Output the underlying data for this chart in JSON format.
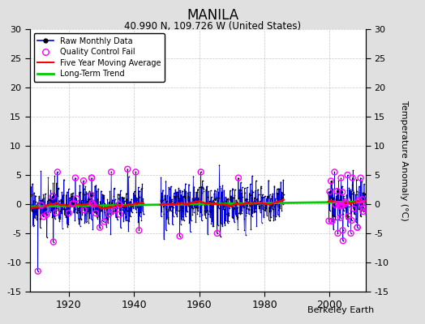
{
  "title": "MANILA",
  "subtitle": "40.990 N, 109.726 W (United States)",
  "ylabel_right": "Temperature Anomaly (°C)",
  "credit": "Berkeley Earth",
  "year_start": 1908,
  "year_end": 2011,
  "ylim": [
    -15,
    30
  ],
  "yticks": [
    -15,
    -10,
    -5,
    0,
    5,
    10,
    15,
    20,
    25,
    30
  ],
  "xticks": [
    1920,
    1940,
    1960,
    1980,
    2000
  ],
  "bg_color": "#e0e0e0",
  "plot_bg_color": "#ffffff",
  "grid_color": "#b0b0b0",
  "raw_line_color": "#0000dd",
  "raw_dot_color": "#000000",
  "qc_color": "#ff00ff",
  "moving_avg_color": "#ff0000",
  "trend_color": "#00cc00",
  "figsize": [
    5.24,
    4.0
  ],
  "dpi": 100,
  "noise_std": 1.8,
  "trend_slope": 0.008,
  "seed": 17
}
